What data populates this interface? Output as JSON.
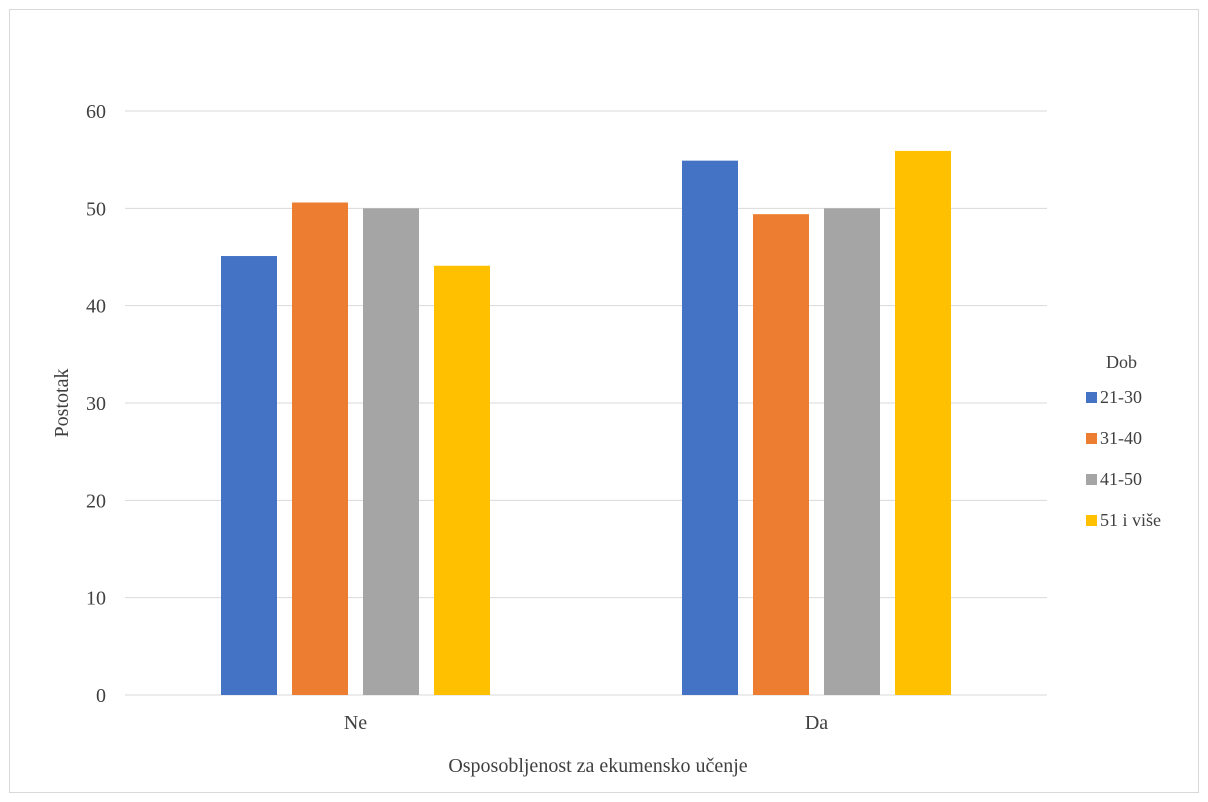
{
  "chart_data": {
    "type": "bar",
    "title": "",
    "xlabel": "Osposobljenost za ekumensko učenje",
    "ylabel": "Postotak",
    "categories": [
      "Ne",
      "Da"
    ],
    "ylim": [
      0,
      60
    ],
    "yticks": [
      "0",
      "10",
      "20",
      "30",
      "40",
      "50",
      "60"
    ],
    "grid": true,
    "legend_title": "Dob",
    "legend_position": "right",
    "series": [
      {
        "name": "21-30",
        "color": "#4472c4",
        "values": [
          45.1,
          54.9
        ]
      },
      {
        "name": "31-40",
        "color": "#ed7d31",
        "values": [
          50.6,
          49.4
        ]
      },
      {
        "name": "41-50",
        "color": "#a5a5a5",
        "values": [
          50.0,
          50.0
        ]
      },
      {
        "name": "51 i više",
        "color": "#ffc000",
        "values": [
          44.1,
          55.9
        ]
      }
    ]
  }
}
